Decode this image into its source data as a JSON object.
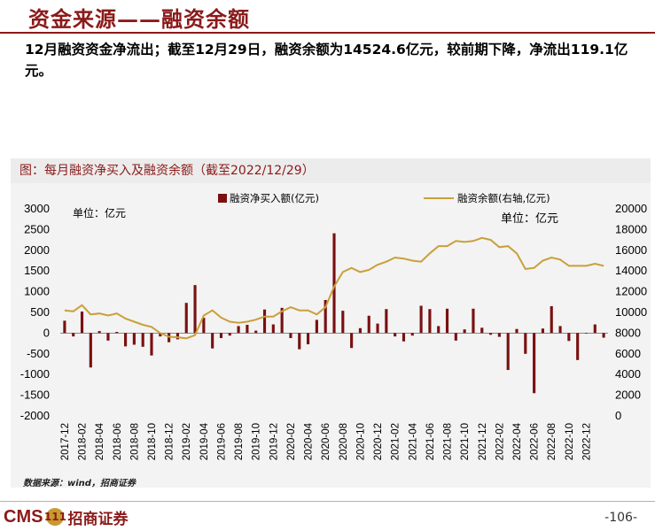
{
  "page": {
    "title": "资金来源——融资余额",
    "summary": "12月融资资金净流出；截至12月29日，融资余额为14524.6亿元，较前期下降，净流出119.1亿元。",
    "chart_heading": "图：每月融资净买入及融资余额（截至2022/12/29）",
    "source": "数据来源：wind，招商证券",
    "logo_text": "CMS",
    "logo_badge": "111",
    "logo_cn": "招商证券",
    "page_number": "-106-"
  },
  "colors": {
    "accent": "#8b1a1a",
    "bar": "#7a1010",
    "line": "#c9a03a"
  },
  "chart_data": {
    "type": "bar+line",
    "legend": [
      {
        "name": "融资净买入额(亿元)",
        "kind": "bar"
      },
      {
        "name": "融资余额(右轴,亿元)",
        "kind": "line"
      }
    ],
    "unit_left": "单位：亿元",
    "unit_right": "单位：亿元",
    "y_left": {
      "min": -2000,
      "max": 3000,
      "ticks": [
        -2000,
        -1500,
        -1000,
        -500,
        0,
        500,
        1000,
        1500,
        2000,
        2500,
        3000
      ]
    },
    "y_right": {
      "min": 0,
      "max": 20000,
      "ticks": [
        0,
        2000,
        4000,
        6000,
        8000,
        10000,
        12000,
        14000,
        16000,
        18000,
        20000
      ]
    },
    "x_tick_labels": [
      "2017-12",
      "2018-02",
      "2018-04",
      "2018-06",
      "2018-08",
      "2018-10",
      "2018-12",
      "2019-02",
      "2019-04",
      "2019-06",
      "2019-08",
      "2019-10",
      "2019-12",
      "2020-02",
      "2020-04",
      "2020-06",
      "2020-08",
      "2020-10",
      "2020-12",
      "2021-02",
      "2021-04",
      "2021-06",
      "2021-08",
      "2021-10",
      "2021-12",
      "2022-02",
      "2022-04",
      "2022-06",
      "2022-08",
      "2022-10",
      "2022-12"
    ],
    "net_buy": [
      300,
      -80,
      520,
      -830,
      50,
      -180,
      30,
      -320,
      -280,
      -330,
      -540,
      -80,
      -220,
      -150,
      730,
      1160,
      370,
      -370,
      -120,
      -60,
      170,
      200,
      60,
      570,
      210,
      610,
      -120,
      -390,
      -270,
      320,
      800,
      2410,
      540,
      -360,
      120,
      420,
      230,
      580,
      -80,
      -200,
      -60,
      660,
      580,
      170,
      590,
      -180,
      90,
      590,
      130,
      -40,
      -90,
      -890,
      100,
      -500,
      -1450,
      110,
      650,
      170,
      -190,
      -650,
      -10,
      210,
      -110
    ],
    "balance": [
      10200,
      10100,
      10700,
      9800,
      9900,
      9700,
      9900,
      9400,
      9100,
      8800,
      8600,
      8000,
      7650,
      7600,
      7500,
      7800,
      9700,
      10200,
      9500,
      9100,
      9000,
      9100,
      9300,
      9600,
      9600,
      10100,
      10500,
      10200,
      10200,
      9800,
      10500,
      12500,
      13900,
      14300,
      13900,
      14100,
      14600,
      14900,
      15300,
      15200,
      15000,
      14900,
      15700,
      16400,
      16400,
      16900,
      16800,
      16900,
      17200,
      17000,
      16300,
      16400,
      15700,
      14200,
      14300,
      15000,
      15300,
      15100,
      14500,
      14500,
      14500,
      14700,
      14500
    ]
  }
}
